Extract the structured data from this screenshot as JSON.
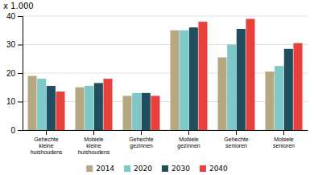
{
  "chart_data": {
    "type": "bar",
    "ylabel": "x 1.000",
    "categories": [
      "Gehechte\nkleine\nhuishoudens",
      "Mobiele\nkleine\nhuishoudens",
      "Gehechte\ngezinnen",
      "Mobiele\ngezinnen",
      "Gehechte\nsenioren",
      "Mobiele\nsenioren"
    ],
    "series": [
      {
        "name": "2014",
        "color": "#b5a882",
        "values": [
          19,
          15,
          12,
          35,
          25.5,
          20.5
        ]
      },
      {
        "name": "2020",
        "color": "#7ec8c8",
        "values": [
          18,
          15.5,
          13,
          35,
          30,
          22.5
        ]
      },
      {
        "name": "2030",
        "color": "#1f4e5f",
        "values": [
          15.5,
          16.5,
          13,
          36,
          35.5,
          28.5
        ]
      },
      {
        "name": "2040",
        "color": "#e8403a",
        "values": [
          13.5,
          18,
          12,
          38,
          39,
          30.5
        ]
      }
    ],
    "ylim": [
      0,
      40
    ],
    "yticks": [
      0,
      10,
      20,
      30,
      40
    ],
    "grid": true,
    "legend": "bottom"
  }
}
